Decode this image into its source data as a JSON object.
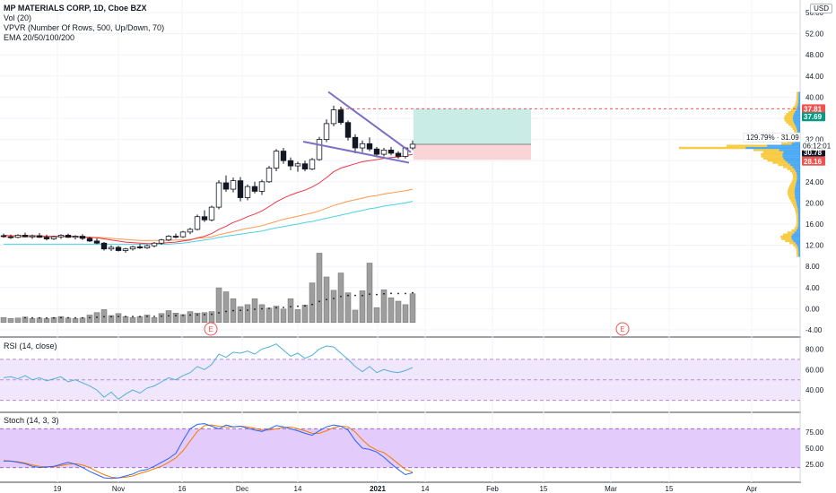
{
  "header": {
    "symbol_line": "MP MATERIALS CORP, 1D, Cboe BZX",
    "indicators": [
      "Vol (20)",
      "VPVR (Number Of Rows, 500, Up/Down, 70)",
      "EMA 20/50/100/200"
    ],
    "currency": "USD"
  },
  "rsi_label": "RSI (14, close)",
  "stoch_label": "Stoch (14, 3, 3)",
  "earnings_marker": "E",
  "colors": {
    "up": "#26a69a",
    "down": "#ef5350",
    "ema20": "#f23645",
    "ema50": "#ff9850",
    "ema100": "#4dd0e1",
    "trendline": "#7b6fc4",
    "rsi": "#4fb0d6",
    "stoch_k": "#2962ff",
    "stoch_d": "#f57c00",
    "band": "#e6d4f7"
  },
  "chart_data": [
    {
      "type": "candlestick",
      "name": "price",
      "x_ticks": [
        "19",
        "Nov",
        "16",
        "Dec",
        "14",
        "2021",
        "14",
        "Feb",
        "15",
        "Mar",
        "15",
        "Apr"
      ],
      "y_ticks": [
        "56.00",
        "52.00",
        "48.00",
        "44.00",
        "40.00",
        "36.00",
        "32.00",
        "28.00",
        "24.00",
        "20.00",
        "16.00",
        "12.00",
        "8.00",
        "4.00",
        "0.00",
        "-4.00"
      ],
      "ylim": [
        -6,
        58
      ],
      "ohlc": [
        [
          13.8,
          14.2,
          13.4,
          13.7
        ],
        [
          13.6,
          14.0,
          13.2,
          13.5
        ],
        [
          13.5,
          14.1,
          13.3,
          13.9
        ],
        [
          13.9,
          14.4,
          13.5,
          13.6
        ],
        [
          13.6,
          14.0,
          13.2,
          13.8
        ],
        [
          13.8,
          14.3,
          13.4,
          13.5
        ],
        [
          13.5,
          14.0,
          12.9,
          13.2
        ],
        [
          13.2,
          13.8,
          13.0,
          13.6
        ],
        [
          13.6,
          14.1,
          13.2,
          13.9
        ],
        [
          13.9,
          14.2,
          13.4,
          13.5
        ],
        [
          13.5,
          13.9,
          13.1,
          13.7
        ],
        [
          13.7,
          14.1,
          13.0,
          13.3
        ],
        [
          13.3,
          13.6,
          12.6,
          12.8
        ],
        [
          12.8,
          13.3,
          12.2,
          12.4
        ],
        [
          12.4,
          12.6,
          11.0,
          11.3
        ],
        [
          11.3,
          12.0,
          10.9,
          11.6
        ],
        [
          11.6,
          11.9,
          10.8,
          11.0
        ],
        [
          11.0,
          11.5,
          10.6,
          11.3
        ],
        [
          11.3,
          11.9,
          11.0,
          11.7
        ],
        [
          11.7,
          12.2,
          11.3,
          11.5
        ],
        [
          11.5,
          12.1,
          11.3,
          11.9
        ],
        [
          11.9,
          12.6,
          11.6,
          12.4
        ],
        [
          12.4,
          13.2,
          12.1,
          13.0
        ],
        [
          13.0,
          13.9,
          12.8,
          13.7
        ],
        [
          13.7,
          14.2,
          13.3,
          13.6
        ],
        [
          13.6,
          14.7,
          13.4,
          14.5
        ],
        [
          14.5,
          15.3,
          14.1,
          15.0
        ],
        [
          15.0,
          17.8,
          14.8,
          17.4
        ],
        [
          17.4,
          18.6,
          16.4,
          16.8
        ],
        [
          16.8,
          19.5,
          16.5,
          19.2
        ],
        [
          19.2,
          24.3,
          18.8,
          23.8
        ],
        [
          23.8,
          25.2,
          22.1,
          22.6
        ],
        [
          22.6,
          24.8,
          22.0,
          24.2
        ],
        [
          24.2,
          24.9,
          20.3,
          21.0
        ],
        [
          21.0,
          23.5,
          20.5,
          23.1
        ],
        [
          23.1,
          24.0,
          21.8,
          22.2
        ],
        [
          22.2,
          24.4,
          21.5,
          24.0
        ],
        [
          24.0,
          27.0,
          23.8,
          26.6
        ],
        [
          26.6,
          30.2,
          26.0,
          29.8
        ],
        [
          29.8,
          30.4,
          27.4,
          28.0
        ],
        [
          28.0,
          28.6,
          26.2,
          27.0
        ],
        [
          27.0,
          27.8,
          25.9,
          27.4
        ],
        [
          27.4,
          28.0,
          26.0,
          26.4
        ],
        [
          26.4,
          28.5,
          26.2,
          28.2
        ],
        [
          28.2,
          32.5,
          28.0,
          32.0
        ],
        [
          32.0,
          35.8,
          31.5,
          35.0
        ],
        [
          35.0,
          38.4,
          34.5,
          37.6
        ],
        [
          37.6,
          38.2,
          34.8,
          35.2
        ],
        [
          35.2,
          35.6,
          31.8,
          32.4
        ],
        [
          32.4,
          33.0,
          29.4,
          30.4
        ],
        [
          30.4,
          31.8,
          29.6,
          31.2
        ],
        [
          31.2,
          32.4,
          29.8,
          30.2
        ],
        [
          30.2,
          30.6,
          28.6,
          29.2
        ],
        [
          29.2,
          30.4,
          28.8,
          30.0
        ],
        [
          30.0,
          30.6,
          29.0,
          29.4
        ],
        [
          29.4,
          29.8,
          28.4,
          28.8
        ],
        [
          28.8,
          30.6,
          28.4,
          30.4
        ],
        [
          30.4,
          31.8,
          30.0,
          31.1
        ]
      ],
      "ema20": [
        13.9,
        13.8,
        13.8,
        13.8,
        13.8,
        13.8,
        13.7,
        13.7,
        13.7,
        13.7,
        13.7,
        13.6,
        13.5,
        13.4,
        13.2,
        13.0,
        12.8,
        12.6,
        12.5,
        12.4,
        12.3,
        12.3,
        12.4,
        12.5,
        12.6,
        12.8,
        13.0,
        13.4,
        13.7,
        14.2,
        15.0,
        15.6,
        16.3,
        16.8,
        17.4,
        17.9,
        18.5,
        19.3,
        20.2,
        20.9,
        21.5,
        22.0,
        22.4,
        23.0,
        23.8,
        24.8,
        25.9,
        26.6,
        27.0,
        27.4,
        27.8,
        28.0,
        28.2,
        28.4,
        28.6,
        28.7,
        28.9,
        29.2
      ],
      "ema50": [
        13.6,
        13.6,
        13.6,
        13.6,
        13.6,
        13.6,
        13.6,
        13.6,
        13.6,
        13.6,
        13.6,
        13.5,
        13.5,
        13.5,
        13.4,
        13.3,
        13.2,
        13.1,
        13.0,
        12.9,
        12.9,
        12.9,
        12.9,
        12.9,
        13.0,
        13.0,
        13.1,
        13.3,
        13.4,
        13.6,
        14.0,
        14.3,
        14.6,
        14.9,
        15.2,
        15.4,
        15.7,
        16.1,
        16.5,
        16.9,
        17.2,
        17.5,
        17.8,
        18.1,
        18.5,
        19.0,
        19.5,
        19.9,
        20.3,
        20.6,
        20.9,
        21.2,
        21.4,
        21.7,
        21.9,
        22.1,
        22.3,
        22.6
      ],
      "ema100": [
        12.2,
        12.2,
        12.2,
        12.2,
        12.2,
        12.2,
        12.2,
        12.2,
        12.2,
        12.2,
        12.2,
        12.2,
        12.2,
        12.2,
        12.2,
        12.2,
        12.2,
        12.2,
        12.2,
        12.2,
        12.2,
        12.2,
        12.2,
        12.2,
        12.3,
        12.4,
        12.6,
        12.8,
        13.0,
        13.2,
        13.5,
        13.7,
        13.9,
        14.1,
        14.3,
        14.5,
        14.7,
        15.0,
        15.3,
        15.5,
        15.8,
        16.0,
        16.3,
        16.5,
        16.8,
        17.1,
        17.4,
        17.7,
        18.0,
        18.3,
        18.6,
        18.9,
        19.1,
        19.4,
        19.6,
        19.8,
        20.0,
        20.3
      ],
      "volume": [
        1.0,
        0.8,
        0.9,
        1.1,
        0.8,
        0.9,
        0.8,
        1.0,
        1.2,
        0.9,
        0.8,
        0.9,
        1.5,
        2.0,
        2.6,
        1.4,
        1.8,
        1.2,
        1.0,
        1.2,
        1.5,
        1.0,
        1.8,
        2.4,
        1.9,
        1.6,
        2.2,
        1.9,
        2.0,
        2.2,
        7.0,
        6.2,
        4.8,
        3.2,
        3.6,
        4.8,
        3.6,
        2.9,
        3.3,
        2.7,
        4.8,
        2.6,
        3.5,
        8.0,
        14.0,
        9.2,
        6.5,
        10.0,
        6.0,
        2.5,
        6.4,
        12.0,
        3.0,
        6.6,
        5.0,
        4.3,
        3.6,
        5.8
      ]
    },
    {
      "type": "volume_profile",
      "name": "VPVR",
      "price_labels": [
        "37.81",
        "37.69",
        "31.09",
        "30.78",
        "28.16"
      ],
      "time_label": "06:12:01",
      "change_label": "129.79%"
    },
    {
      "type": "line",
      "name": "RSI (14, close)",
      "y_ticks": [
        "80.00",
        "60.00",
        "40.00"
      ],
      "ylim": [
        20,
        90
      ],
      "band": [
        30,
        70
      ],
      "values": [
        52,
        53,
        51,
        54,
        50,
        52,
        49,
        51,
        53,
        48,
        50,
        47,
        44,
        40,
        33,
        38,
        31,
        36,
        40,
        37,
        42,
        44,
        48,
        52,
        50,
        54,
        57,
        63,
        60,
        65,
        75,
        72,
        77,
        76,
        78,
        75,
        80,
        82,
        85,
        79,
        73,
        76,
        71,
        74,
        80,
        83,
        82,
        76,
        70,
        63,
        58,
        63,
        57,
        60,
        58,
        57,
        59,
        62
      ]
    },
    {
      "type": "line",
      "name": "Stoch (14, 3, 3)",
      "y_ticks": [
        "75.00",
        "50.00",
        "25.00"
      ],
      "ylim": [
        0,
        100
      ],
      "band": [
        20,
        80
      ],
      "k": [
        30,
        30,
        28,
        26,
        22,
        20,
        21,
        22,
        25,
        28,
        25,
        20,
        14,
        9,
        4,
        3,
        4,
        7,
        10,
        15,
        17,
        22,
        28,
        34,
        42,
        62,
        80,
        87,
        88,
        84,
        80,
        86,
        83,
        84,
        81,
        78,
        76,
        80,
        85,
        83,
        80,
        77,
        73,
        70,
        77,
        83,
        86,
        84,
        78,
        62,
        50,
        48,
        44,
        36,
        26,
        17,
        9,
        12
      ],
      "d": [
        31,
        30,
        29,
        27,
        24,
        22,
        21,
        21,
        23,
        25,
        26,
        24,
        20,
        14,
        9,
        5,
        4,
        5,
        7,
        11,
        14,
        18,
        22,
        28,
        35,
        46,
        61,
        76,
        85,
        86,
        84,
        83,
        83,
        84,
        83,
        81,
        78,
        78,
        80,
        82,
        83,
        80,
        77,
        73,
        73,
        77,
        82,
        84,
        83,
        75,
        63,
        53,
        47,
        43,
        35,
        26,
        17,
        13
      ]
    }
  ]
}
